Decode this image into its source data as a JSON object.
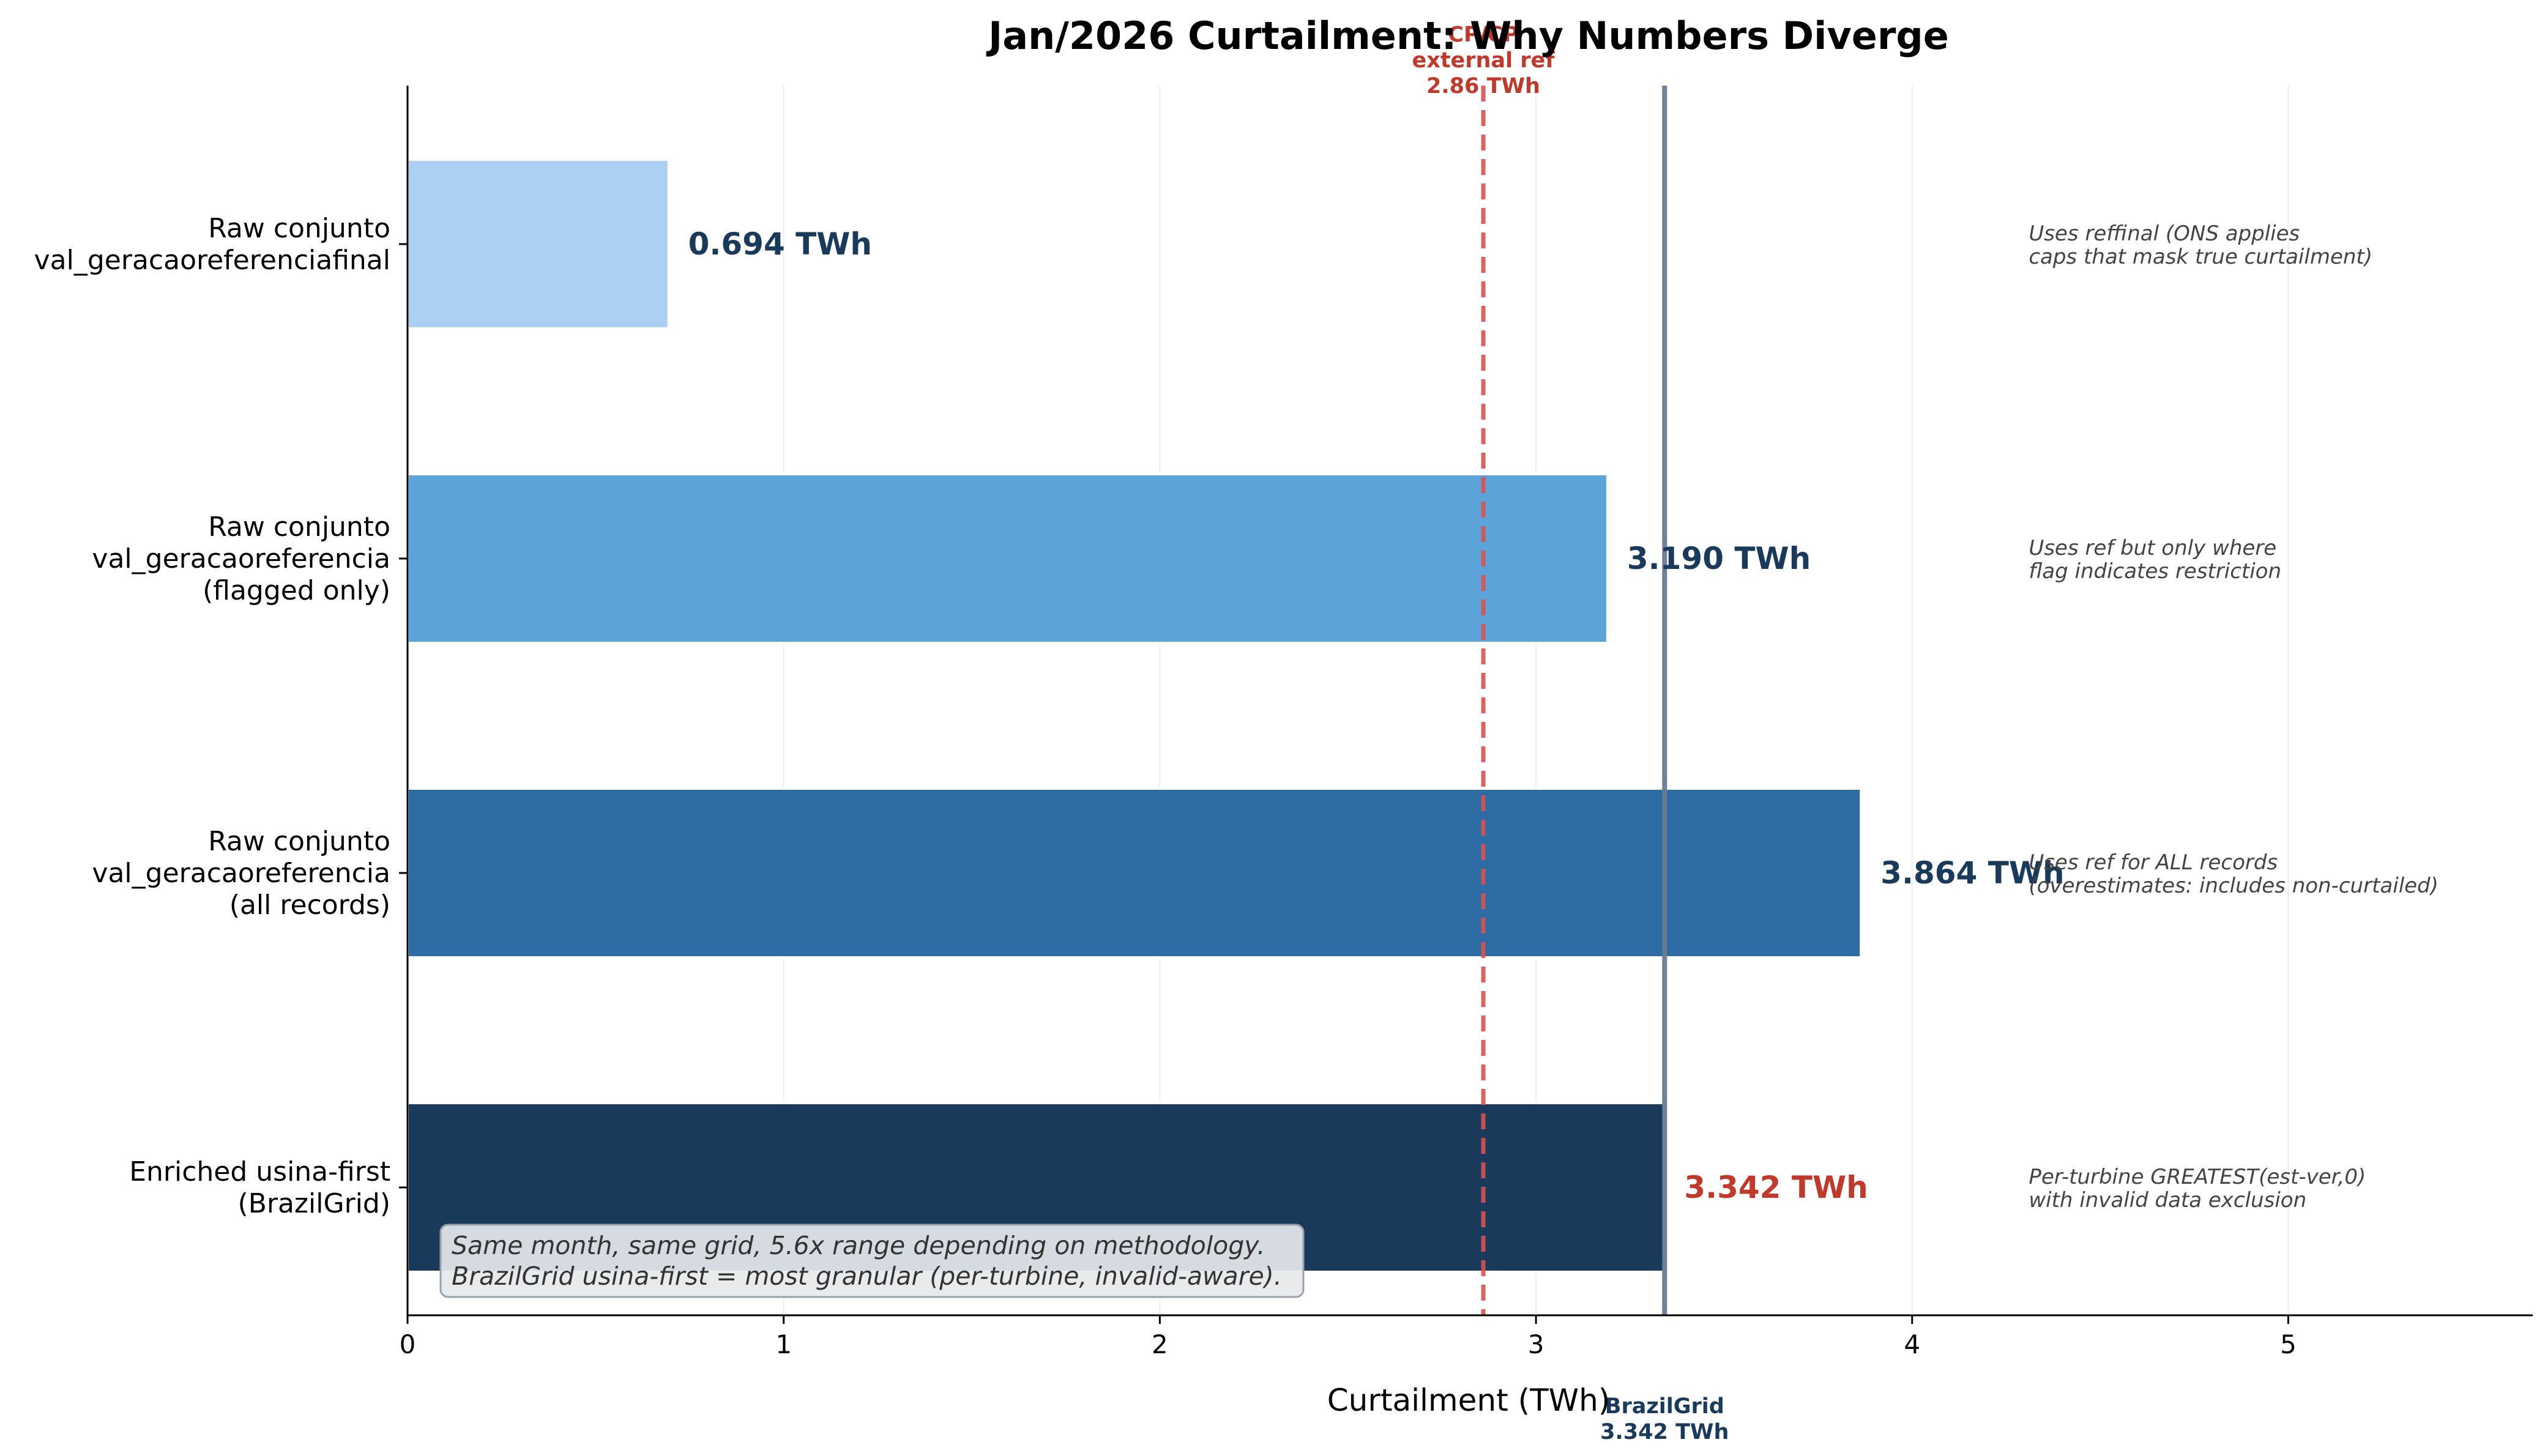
{
  "chart_data": {
    "type": "bar",
    "orientation": "horizontal",
    "title": "Jan/2026 Curtailment: Why Numbers Diverge",
    "xlabel": "Curtailment (TWh)",
    "ylabel": "",
    "xlim": [
      0,
      5.65
    ],
    "xticks": [
      0,
      1,
      2,
      3,
      4,
      5
    ],
    "xtick_labels": [
      "0",
      "1",
      "2",
      "3",
      "4",
      "5"
    ],
    "grid": "x",
    "categories": [
      [
        "Raw conjunto",
        "val_geracaoreferenciafinal"
      ],
      [
        "Raw conjunto",
        "val_geracaoreferencia",
        "(flagged only)"
      ],
      [
        "Raw conjunto",
        "val_geracaoreferencia",
        "(all records)"
      ],
      [
        "Enriched usina-first",
        "(BrazilGrid)"
      ]
    ],
    "values": [
      0.694,
      3.19,
      3.864,
      3.342
    ],
    "value_labels": [
      "0.694 TWh",
      "3.190 TWh",
      "3.864 TWh",
      "3.342 TWh"
    ],
    "bar_colors": [
      "#aacff0",
      "#5ba3d8",
      "#2c6ca3",
      "#1a3a5c"
    ],
    "value_label_colors": [
      "#1a3a5c",
      "#1a3a5c",
      "#1a3a5c",
      "#c0392b"
    ],
    "notes": [
      [
        "Uses reffinal (ONS applies",
        "caps that mask true curtailment)"
      ],
      [
        "Uses ref but only where",
        "flag indicates restriction"
      ],
      [
        "Uses ref for ALL records",
        "(overestimates: includes non-curtailed)"
      ],
      [
        "Per-turbine GREATEST(est-ver,0)",
        "with invalid data exclusion"
      ]
    ],
    "note_x": 4.31,
    "reference_lines": [
      {
        "value": 2.86,
        "style": "dashed",
        "color": "#d9534f",
        "text_color": "#c0392b",
        "labels": [
          "CP/CP",
          "external ref",
          "2.86 TWh"
        ],
        "label_position": "top"
      },
      {
        "value": 3.342,
        "style": "solid",
        "color": "#6b7b94",
        "text_color": "#1a3a5c",
        "labels": [
          "BrazilGrid",
          "3.342 TWh"
        ],
        "label_position": "bottom"
      }
    ],
    "caption": [
      "Same month, same grid, 5.6x range depending on methodology.",
      "BrazilGrid usina-first = most granular (per-turbine, invalid-aware)."
    ]
  }
}
